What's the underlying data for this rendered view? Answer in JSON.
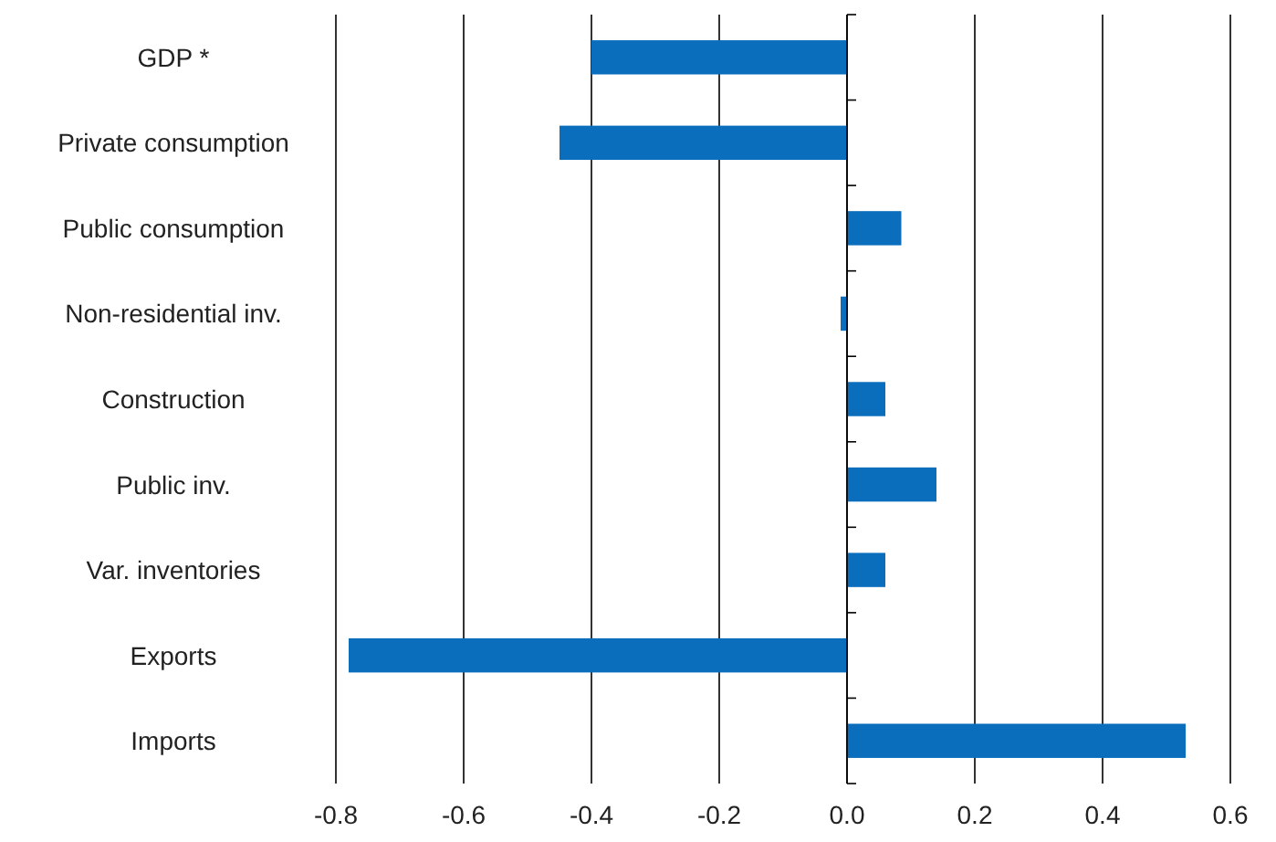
{
  "chart_data": {
    "type": "bar",
    "orientation": "horizontal",
    "categories": [
      "GDP *",
      "Private consumption",
      "Public consumption",
      "Non-residential inv.",
      "Construction",
      "Public inv.",
      "Var. inventories",
      "Exports",
      "Imports"
    ],
    "values": [
      -0.4,
      -0.45,
      0.085,
      -0.01,
      0.06,
      0.14,
      0.06,
      -0.78,
      0.53
    ],
    "color": "#0a6ebd",
    "xlim": [
      -0.8,
      0.6
    ],
    "xticks": [
      {
        "value": -0.8,
        "label": "-0.8"
      },
      {
        "value": -0.6,
        "label": "-0.6"
      },
      {
        "value": -0.4,
        "label": "-0.4"
      },
      {
        "value": -0.2,
        "label": "-0.2"
      },
      {
        "value": 0,
        "label": "0.0"
      },
      {
        "value": 0.2,
        "label": "0.2"
      },
      {
        "value": 0.4,
        "label": "0.4"
      },
      {
        "value": 0.6,
        "label": "0.6"
      }
    ],
    "grid": "x"
  }
}
